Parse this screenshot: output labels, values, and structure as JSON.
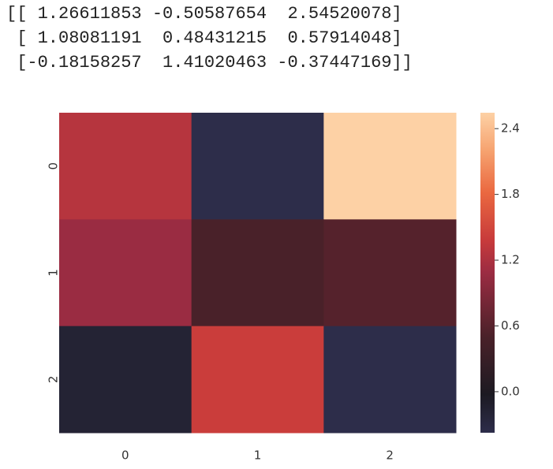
{
  "printed_output": [
    "[[ 1.26611853 -0.50587654  2.54520078]",
    " [ 1.08081191  0.48431215  0.57914048]",
    " [-0.18158257  1.41020463 -0.37447169]]"
  ],
  "chart_data": {
    "type": "heatmap",
    "x_categories": [
      "0",
      "1",
      "2"
    ],
    "y_categories": [
      "0",
      "1",
      "2"
    ],
    "values": [
      [
        1.26611853,
        -0.50587654,
        2.54520078
      ],
      [
        1.08081191,
        0.48431215,
        0.57914048
      ],
      [
        -0.18158257,
        1.41020463,
        -0.37447169
      ]
    ],
    "colorlim": [
      -0.37447169,
      2.54520078
    ],
    "colorticks": [
      {
        "value": 0,
        "label": "0.0"
      },
      0.6,
      1.2,
      1.8,
      2.4
    ],
    "colorscale": [
      [
        0,
        "#2d2d4a"
      ],
      [
        0.12,
        "#1c1a22"
      ],
      [
        0.3,
        "#4a2129"
      ],
      [
        0.5,
        "#9b2c42"
      ],
      [
        0.6,
        "#c73a3b"
      ],
      [
        0.75,
        "#ea6840"
      ],
      [
        0.88,
        "#f6a26f"
      ],
      [
        1,
        "#fdd1a5"
      ]
    ]
  }
}
